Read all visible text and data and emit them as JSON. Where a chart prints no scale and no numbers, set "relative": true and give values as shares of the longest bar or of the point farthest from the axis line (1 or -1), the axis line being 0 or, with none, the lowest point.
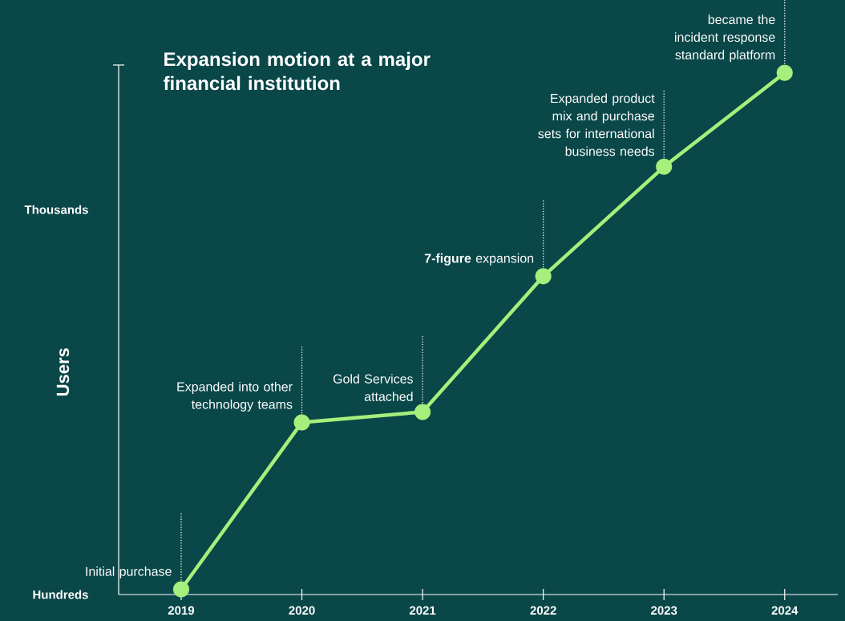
{
  "chart_data": {
    "type": "line",
    "title": "Expansion motion at a major financial institution",
    "ylabel": "Users",
    "categories": [
      "2019",
      "2020",
      "2021",
      "2022",
      "2023",
      "2024"
    ],
    "values": [
      0.01,
      0.33,
      0.35,
      0.61,
      0.82,
      1
    ],
    "color": "#a6ef7c",
    "marker": "circle",
    "relative": true,
    "annotations": [
      {
        "text": "Initial purchase",
        "x": "2019",
        "y": 0.01
      },
      {
        "text": "Expanded into other technology teams",
        "x": "2020",
        "y": 0.33
      },
      {
        "text": "Gold Services attached",
        "x": "2021",
        "y": 0.35
      },
      {
        "text": "**7-figure** expansion",
        "x": "2022",
        "y": 0.61
      },
      {
        "text": "Expanded product mix and purchase sets for international business needs",
        "x": "2023",
        "y": 0.82
      },
      {
        "text": "became the incident response standard platform",
        "x": "2024",
        "y": 1
      },
      "Hundreds",
      "Thousands"
    ]
  }
}
